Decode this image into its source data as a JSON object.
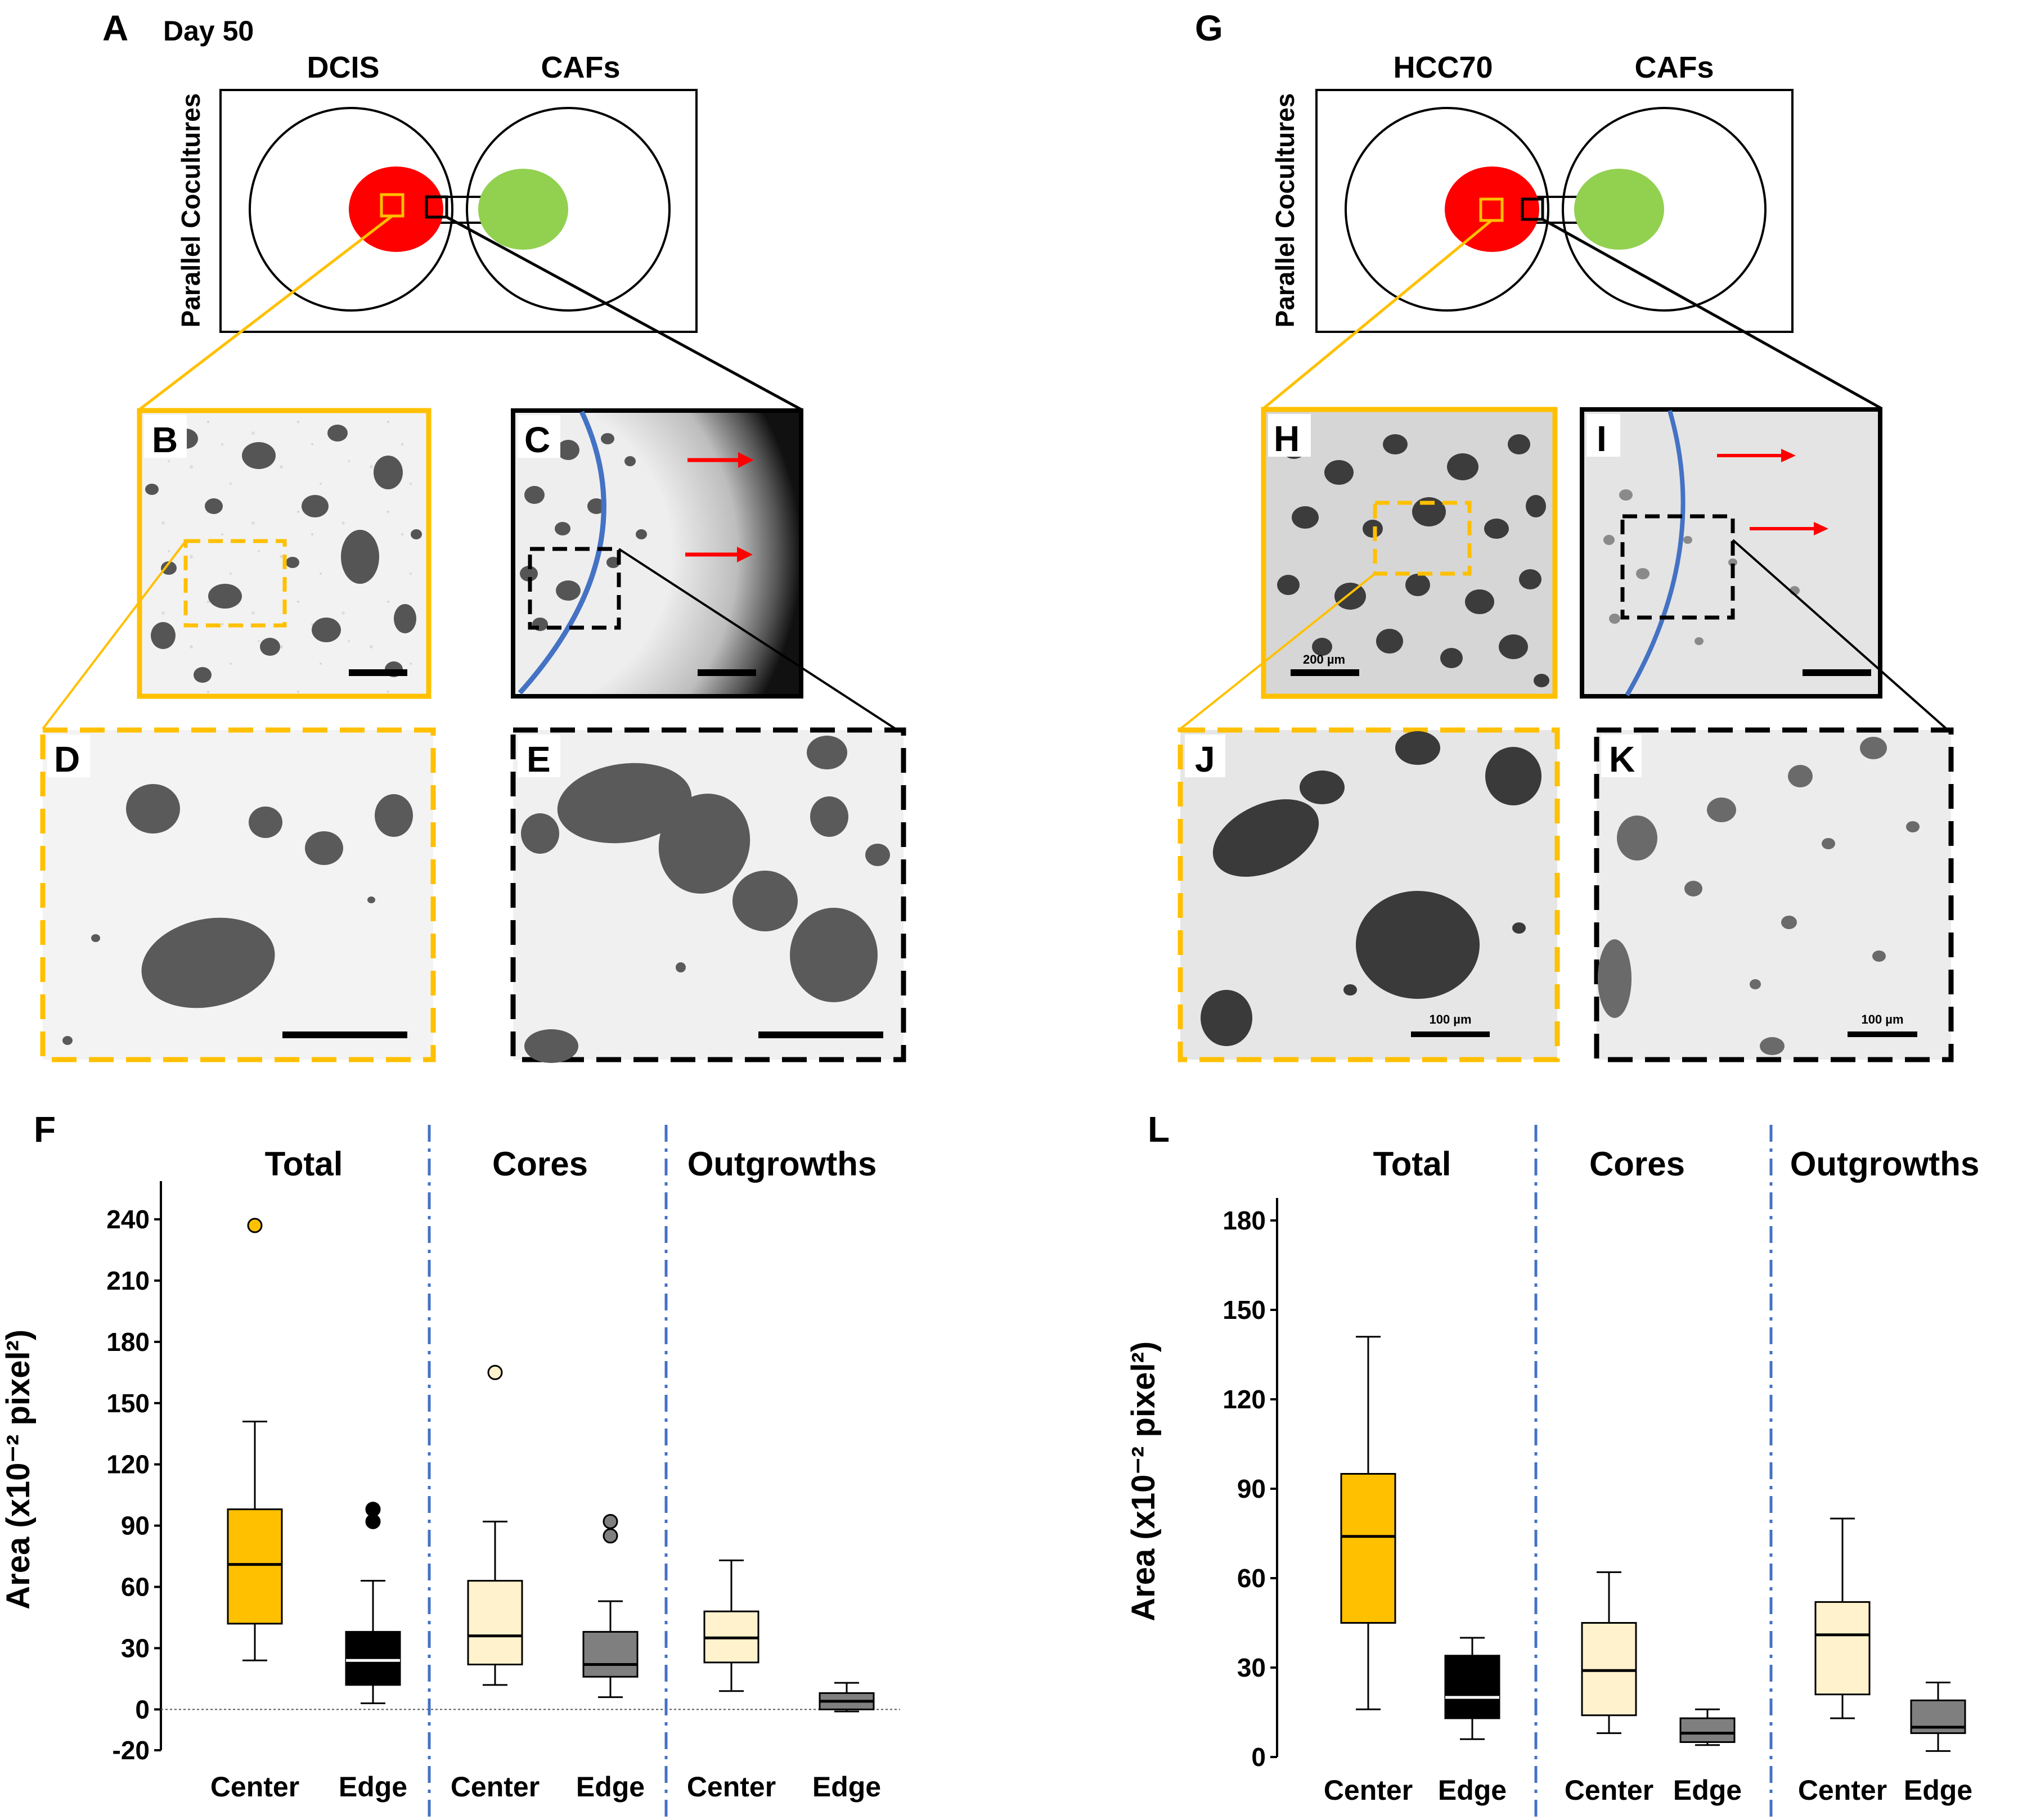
{
  "panel_labels": {
    "A": "A",
    "B": "B",
    "C": "C",
    "D": "D",
    "E": "E",
    "F": "F",
    "G": "G",
    "H": "H",
    "I": "I",
    "J": "J",
    "K": "K",
    "L": "L"
  },
  "left_schematic": {
    "day": "Day 50",
    "left_label": "DCIS",
    "right_label": "CAFs",
    "side_label": "Parallel Cocultures"
  },
  "right_schematic": {
    "left_label": "HCC70",
    "right_label": "CAFs",
    "side_label": "Parallel Cocultures"
  },
  "micrograph_labels": {
    "H_scale": "200 µm",
    "J_scale": "100 µm",
    "K_scale": "100 µm"
  },
  "colors": {
    "tumor": "#ff0000",
    "caf": "#92d050",
    "center_box": "#ffc000",
    "center_light": "#fff2cc",
    "edge_dark": "#000000",
    "edge_gray": "#7f7f7f",
    "divider": "#4472c4",
    "arrow": "#ff0000"
  },
  "chart_data": [
    {
      "panel": "F",
      "type": "box",
      "ylabel": "Area (x10⁻² pixel²)",
      "ylim": [
        -20,
        255
      ],
      "yticks": [
        -20,
        0,
        30,
        60,
        90,
        120,
        150,
        180,
        210,
        240
      ],
      "zero_line": true,
      "groups": [
        "Total",
        "Cores",
        "Outgrowths"
      ],
      "categories": [
        "Center",
        "Edge",
        "Center",
        "Edge",
        "Center",
        "Edge"
      ],
      "boxes": [
        {
          "group": "Total",
          "category": "Center",
          "whisker_low": 24,
          "q1": 42,
          "median": 71,
          "q3": 98,
          "whisker_high": 141,
          "outliers": [
            237
          ],
          "color": "#ffc000",
          "median_color": "#000000"
        },
        {
          "group": "Total",
          "category": "Edge",
          "whisker_low": 3,
          "q1": 12,
          "median": 24,
          "q3": 38,
          "whisker_high": 63,
          "outliers": [
            92,
            98
          ],
          "color": "#000000",
          "median_color": "#ffffff"
        },
        {
          "group": "Cores",
          "category": "Center",
          "whisker_low": 12,
          "q1": 22,
          "median": 36,
          "q3": 63,
          "whisker_high": 92,
          "outliers": [
            165
          ],
          "color": "#fff2cc",
          "median_color": "#000000"
        },
        {
          "group": "Cores",
          "category": "Edge",
          "whisker_low": 6,
          "q1": 16,
          "median": 22,
          "q3": 38,
          "whisker_high": 53,
          "outliers": [
            85,
            92
          ],
          "color": "#7f7f7f",
          "median_color": "#000000"
        },
        {
          "group": "Outgrowths",
          "category": "Center",
          "whisker_low": 9,
          "q1": 23,
          "median": 35,
          "q3": 48,
          "whisker_high": 73,
          "outliers": [],
          "color": "#fff2cc",
          "median_color": "#000000"
        },
        {
          "group": "Outgrowths",
          "category": "Edge",
          "whisker_low": -1,
          "q1": 0,
          "median": 4,
          "q3": 8,
          "whisker_high": 13,
          "outliers": [],
          "color": "#7f7f7f",
          "median_color": "#000000"
        }
      ]
    },
    {
      "panel": "L",
      "type": "box",
      "ylabel": "Area (x10⁻² pixel²)",
      "ylim": [
        0,
        185
      ],
      "yticks": [
        0,
        30,
        60,
        90,
        120,
        150,
        180
      ],
      "zero_line": false,
      "groups": [
        "Total",
        "Cores",
        "Outgrowths"
      ],
      "categories": [
        "Center",
        "Edge",
        "Center",
        "Edge",
        "Center",
        "Edge"
      ],
      "boxes": [
        {
          "group": "Total",
          "category": "Center",
          "whisker_low": 16,
          "q1": 45,
          "median": 74,
          "q3": 95,
          "whisker_high": 141,
          "outliers": [],
          "color": "#ffc000",
          "median_color": "#000000"
        },
        {
          "group": "Total",
          "category": "Edge",
          "whisker_low": 6,
          "q1": 13,
          "median": 20,
          "q3": 34,
          "whisker_high": 40,
          "outliers": [],
          "color": "#000000",
          "median_color": "#ffffff"
        },
        {
          "group": "Cores",
          "category": "Center",
          "whisker_low": 8,
          "q1": 14,
          "median": 29,
          "q3": 45,
          "whisker_high": 62,
          "outliers": [],
          "color": "#fff2cc",
          "median_color": "#000000"
        },
        {
          "group": "Cores",
          "category": "Edge",
          "whisker_low": 4,
          "q1": 5,
          "median": 8,
          "q3": 13,
          "whisker_high": 16,
          "outliers": [],
          "color": "#7f7f7f",
          "median_color": "#000000"
        },
        {
          "group": "Outgrowths",
          "category": "Center",
          "whisker_low": 13,
          "q1": 21,
          "median": 41,
          "q3": 52,
          "whisker_high": 80,
          "outliers": [],
          "color": "#fff2cc",
          "median_color": "#000000"
        },
        {
          "group": "Outgrowths",
          "category": "Edge",
          "whisker_low": 2,
          "q1": 8,
          "median": 10,
          "q3": 19,
          "whisker_high": 25,
          "outliers": [],
          "color": "#7f7f7f",
          "median_color": "#000000"
        }
      ]
    }
  ]
}
